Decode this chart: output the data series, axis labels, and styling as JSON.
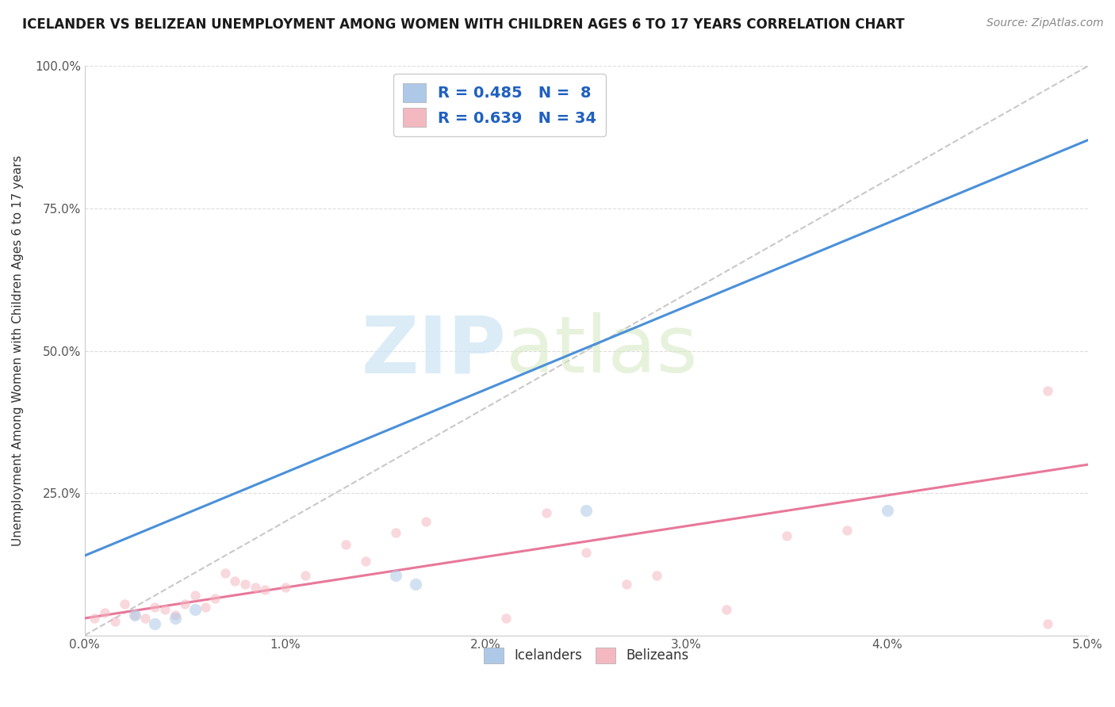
{
  "title": "ICELANDER VS BELIZEAN UNEMPLOYMENT AMONG WOMEN WITH CHILDREN AGES 6 TO 17 YEARS CORRELATION CHART",
  "source": "Source: ZipAtlas.com",
  "xlabel_ticks": [
    "0.0%",
    "1.0%",
    "2.0%",
    "3.0%",
    "4.0%",
    "5.0%"
  ],
  "ylabel_ticks": [
    "",
    "25.0%",
    "50.0%",
    "75.0%",
    "100.0%"
  ],
  "ylabel_label": "Unemployment Among Women with Children Ages 6 to 17 years",
  "xlim": [
    0.0,
    5.0
  ],
  "ylim": [
    0.0,
    100.0
  ],
  "legend_r1": "R = 0.485",
  "legend_n1": "N =  8",
  "legend_r2": "R = 0.639",
  "legend_n2": "N = 34",
  "legend_label1": "Icelanders",
  "legend_label2": "Belizeans",
  "color_iceland": "#aec9e8",
  "color_belize": "#f4b8c1",
  "color_iceland_line": "#4a90d9",
  "color_belize_line": "#e8789a",
  "watermark_zip": "ZIP",
  "watermark_atlas": "atlas",
  "iceland_line_x0": 0.0,
  "iceland_line_y0": 14.0,
  "iceland_line_x1": 5.0,
  "iceland_line_y1": 87.0,
  "belize_line_x0": 0.0,
  "belize_line_y0": 3.0,
  "belize_line_x1": 5.0,
  "belize_line_y1": 30.0,
  "diag_line_x0": 0.0,
  "diag_line_y0": 0.0,
  "diag_line_x1": 5.0,
  "diag_line_y1": 100.0,
  "icelander_x": [
    0.25,
    0.35,
    0.45,
    0.55,
    1.55,
    1.65,
    2.5,
    4.0
  ],
  "icelander_y": [
    3.5,
    2.0,
    3.0,
    4.5,
    10.5,
    9.0,
    22.0,
    22.0
  ],
  "belizean_x": [
    0.05,
    0.1,
    0.15,
    0.2,
    0.25,
    0.3,
    0.35,
    0.4,
    0.45,
    0.5,
    0.55,
    0.6,
    0.65,
    0.7,
    0.75,
    0.8,
    0.85,
    0.9,
    1.0,
    1.1,
    1.4,
    1.55,
    1.7,
    2.1,
    2.3,
    2.5,
    2.7,
    2.85,
    1.3,
    3.2,
    3.5,
    3.8,
    4.8,
    4.8
  ],
  "belizean_y": [
    3.0,
    4.0,
    2.5,
    5.5,
    3.5,
    3.0,
    5.0,
    4.5,
    3.5,
    5.5,
    7.0,
    5.0,
    6.5,
    11.0,
    9.5,
    9.0,
    8.5,
    8.0,
    8.5,
    10.5,
    13.0,
    18.0,
    20.0,
    3.0,
    21.5,
    14.5,
    9.0,
    10.5,
    16.0,
    4.5,
    17.5,
    18.5,
    43.0,
    2.0
  ],
  "marker_size_iceland": 120,
  "marker_size_belize": 80,
  "scatter_alpha": 0.55,
  "grid_color": "#dddddd",
  "spine_color": "#cccccc",
  "title_fontsize": 12,
  "source_fontsize": 10,
  "tick_fontsize": 11,
  "ylabel_fontsize": 11
}
